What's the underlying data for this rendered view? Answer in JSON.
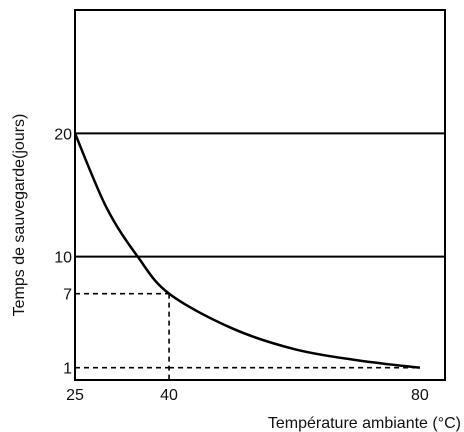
{
  "chart_data": {
    "type": "line",
    "title": "",
    "xlabel": "Température ambiante (°C)",
    "ylabel": "Temps de sauvegarde(jours)",
    "xlim": [
      25,
      84
    ],
    "ylim": [
      0,
      30
    ],
    "x_ticks": [
      "25",
      "40",
      "80"
    ],
    "y_ticks": [
      "1",
      "7",
      "10",
      "20"
    ],
    "grid": false,
    "reference_lines_y": [
      20,
      10
    ],
    "annotations": [
      {
        "x": 40,
        "y": 7
      },
      {
        "x": 40,
        "y": 1
      }
    ],
    "series": [
      {
        "x": [
          25,
          30,
          35,
          40,
          50,
          60,
          70,
          80
        ],
        "values": [
          20,
          14,
          10,
          7,
          4.2,
          2.5,
          1.6,
          1
        ]
      }
    ],
    "colors": {
      "line": "#000000",
      "axis": "#000000"
    }
  }
}
